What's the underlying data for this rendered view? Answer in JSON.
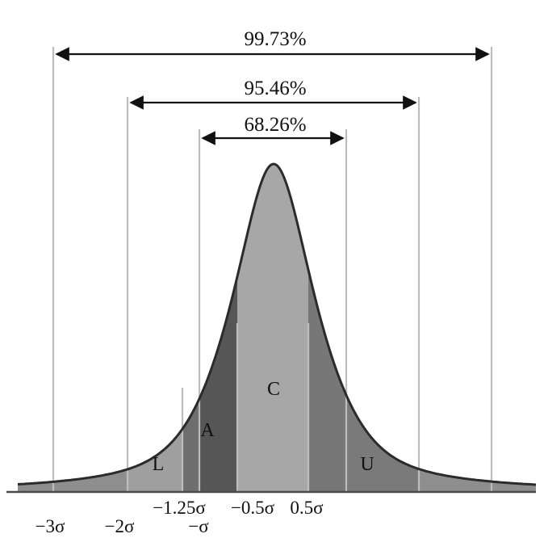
{
  "intervals": [
    {
      "label": "99.73%"
    },
    {
      "label": "95.46%"
    },
    {
      "label": "68.26%"
    }
  ],
  "regions": [
    {
      "label": "L"
    },
    {
      "label": "A"
    },
    {
      "label": "C"
    },
    {
      "label": "U"
    }
  ],
  "ticks_lower": [
    "−3σ",
    "−2σ",
    "−σ"
  ],
  "ticks_upper": [
    "−1.25σ",
    "−0.5σ",
    "0.5σ"
  ],
  "colors": {
    "light_region": "#9f9f9f",
    "mid_region": "#7a7a7a",
    "dark_region": "#565656",
    "center_region": "#a7a7a7",
    "guide_line": "#bdbdbd",
    "curve": "#2b2b2b"
  }
}
